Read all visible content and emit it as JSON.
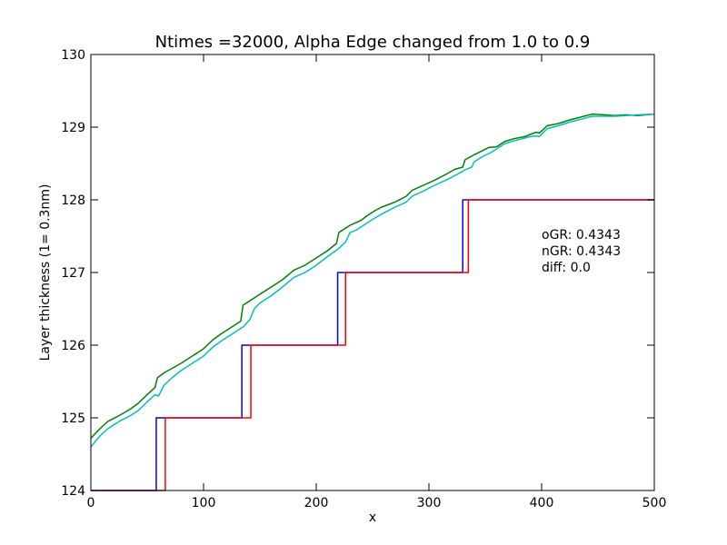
{
  "chart_data": {
    "type": "line",
    "title": "Ntimes =32000, Alpha Edge changed from 1.0 to 0.9",
    "xlabel": "x",
    "ylabel": "Layer thickness (1= 0.3nm)",
    "xlim": [
      0,
      500
    ],
    "ylim": [
      124,
      130
    ],
    "x_ticks": [
      0,
      100,
      200,
      300,
      400,
      500
    ],
    "y_ticks": [
      124,
      125,
      126,
      127,
      128,
      129,
      130
    ],
    "grid": false,
    "annotations": [
      "oGR: 0.4343",
      "nGR: 0.4343",
      "diff: 0.0"
    ],
    "series": [
      {
        "color": "#008000",
        "points": [
          [
            0,
            124.72
          ],
          [
            8,
            124.85
          ],
          [
            15,
            124.95
          ],
          [
            25,
            125.03
          ],
          [
            35,
            125.12
          ],
          [
            42,
            125.2
          ],
          [
            50,
            125.32
          ],
          [
            57,
            125.42
          ],
          [
            59,
            125.55
          ],
          [
            65,
            125.62
          ],
          [
            72,
            125.68
          ],
          [
            80,
            125.75
          ],
          [
            90,
            125.85
          ],
          [
            100,
            125.95
          ],
          [
            108,
            126.07
          ],
          [
            115,
            126.15
          ],
          [
            125,
            126.25
          ],
          [
            133,
            126.33
          ],
          [
            135,
            126.55
          ],
          [
            140,
            126.6
          ],
          [
            150,
            126.7
          ],
          [
            160,
            126.8
          ],
          [
            170,
            126.9
          ],
          [
            180,
            127.03
          ],
          [
            190,
            127.1
          ],
          [
            200,
            127.2
          ],
          [
            210,
            127.3
          ],
          [
            218,
            127.4
          ],
          [
            220,
            127.55
          ],
          [
            225,
            127.6
          ],
          [
            230,
            127.65
          ],
          [
            240,
            127.72
          ],
          [
            245,
            127.78
          ],
          [
            252,
            127.85
          ],
          [
            258,
            127.9
          ],
          [
            270,
            127.97
          ],
          [
            280,
            128.05
          ],
          [
            285,
            128.13
          ],
          [
            295,
            128.2
          ],
          [
            305,
            128.27
          ],
          [
            315,
            128.35
          ],
          [
            323,
            128.42
          ],
          [
            330,
            128.45
          ],
          [
            332,
            128.55
          ],
          [
            340,
            128.62
          ],
          [
            348,
            128.68
          ],
          [
            353,
            128.72
          ],
          [
            360,
            128.73
          ],
          [
            367,
            128.8
          ],
          [
            375,
            128.84
          ],
          [
            385,
            128.87
          ],
          [
            390,
            128.9
          ],
          [
            395,
            128.93
          ],
          [
            398,
            128.92
          ],
          [
            405,
            129.02
          ],
          [
            415,
            129.05
          ],
          [
            425,
            129.1
          ],
          [
            435,
            129.14
          ],
          [
            445,
            129.18
          ],
          [
            455,
            129.17
          ],
          [
            465,
            129.16
          ],
          [
            475,
            129.17
          ],
          [
            485,
            129.16
          ],
          [
            500,
            129.18
          ]
        ]
      },
      {
        "color": "#00BFBF",
        "points": [
          [
            0,
            124.6
          ],
          [
            8,
            124.75
          ],
          [
            15,
            124.85
          ],
          [
            25,
            124.95
          ],
          [
            35,
            125.03
          ],
          [
            42,
            125.1
          ],
          [
            50,
            125.22
          ],
          [
            57,
            125.32
          ],
          [
            60,
            125.3
          ],
          [
            65,
            125.45
          ],
          [
            72,
            125.55
          ],
          [
            80,
            125.65
          ],
          [
            90,
            125.75
          ],
          [
            100,
            125.85
          ],
          [
            108,
            125.97
          ],
          [
            115,
            126.05
          ],
          [
            125,
            126.15
          ],
          [
            135,
            126.25
          ],
          [
            141,
            126.35
          ],
          [
            145,
            126.5
          ],
          [
            150,
            126.58
          ],
          [
            160,
            126.68
          ],
          [
            170,
            126.8
          ],
          [
            180,
            126.93
          ],
          [
            190,
            127.0
          ],
          [
            200,
            127.1
          ],
          [
            210,
            127.22
          ],
          [
            220,
            127.33
          ],
          [
            226,
            127.42
          ],
          [
            230,
            127.55
          ],
          [
            235,
            127.58
          ],
          [
            240,
            127.63
          ],
          [
            245,
            127.68
          ],
          [
            252,
            127.75
          ],
          [
            260,
            127.82
          ],
          [
            270,
            127.9
          ],
          [
            280,
            127.97
          ],
          [
            285,
            128.05
          ],
          [
            295,
            128.12
          ],
          [
            305,
            128.2
          ],
          [
            315,
            128.27
          ],
          [
            325,
            128.35
          ],
          [
            333,
            128.42
          ],
          [
            338,
            128.45
          ],
          [
            340,
            128.52
          ],
          [
            348,
            128.6
          ],
          [
            355,
            128.65
          ],
          [
            360,
            128.7
          ],
          [
            367,
            128.77
          ],
          [
            375,
            128.81
          ],
          [
            385,
            128.85
          ],
          [
            390,
            128.87
          ],
          [
            395,
            128.88
          ],
          [
            398,
            128.87
          ],
          [
            405,
            128.98
          ],
          [
            415,
            129.02
          ],
          [
            425,
            129.07
          ],
          [
            435,
            129.11
          ],
          [
            445,
            129.15
          ],
          [
            455,
            129.15
          ],
          [
            465,
            129.15
          ],
          [
            475,
            129.16
          ],
          [
            485,
            129.17
          ],
          [
            500,
            129.18
          ]
        ]
      },
      {
        "color": "#0000FF",
        "points": [
          [
            0,
            124
          ],
          [
            58,
            124
          ],
          [
            58,
            125
          ],
          [
            134,
            125
          ],
          [
            134,
            126
          ],
          [
            219,
            126
          ],
          [
            219,
            127
          ],
          [
            330,
            127
          ],
          [
            330,
            128
          ],
          [
            500,
            128
          ]
        ]
      },
      {
        "color": "#FF0000",
        "points": [
          [
            0,
            124
          ],
          [
            66,
            124
          ],
          [
            66,
            125
          ],
          [
            142,
            125
          ],
          [
            142,
            126
          ],
          [
            226,
            126
          ],
          [
            226,
            127
          ],
          [
            335,
            127
          ],
          [
            335,
            128
          ],
          [
            500,
            128
          ]
        ]
      }
    ]
  }
}
